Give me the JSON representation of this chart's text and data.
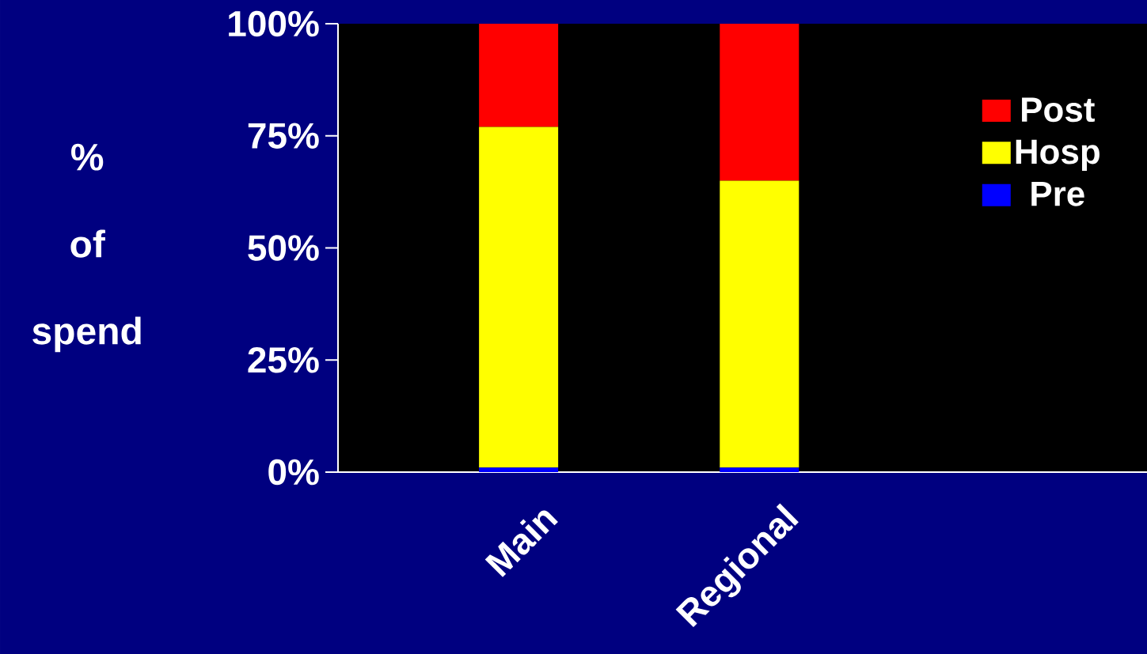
{
  "chart_data": {
    "type": "bar",
    "stacked": true,
    "ylabel": "% of spend",
    "categories": [
      null,
      "Main",
      null,
      "Regional",
      null,
      null,
      null
    ],
    "series": [
      {
        "name": "Pre",
        "color": "#0000ff",
        "values": [
          null,
          1,
          null,
          1,
          null,
          null,
          null
        ]
      },
      {
        "name": "Hosp",
        "color": "#ffff00",
        "values": [
          null,
          76,
          null,
          64,
          null,
          null,
          null
        ]
      },
      {
        "name": "Post",
        "color": "#ff0000",
        "values": [
          null,
          23,
          null,
          35,
          null,
          null,
          null
        ]
      }
    ],
    "ylim": [
      0,
      100
    ],
    "yticks": [
      {
        "value": 0,
        "label": "0%"
      },
      {
        "value": 25,
        "label": "25%"
      },
      {
        "value": 50,
        "label": "50%"
      },
      {
        "value": 75,
        "label": "75%"
      },
      {
        "value": 100,
        "label": "100%"
      }
    ],
    "legend": "top right",
    "grid": false
  }
}
